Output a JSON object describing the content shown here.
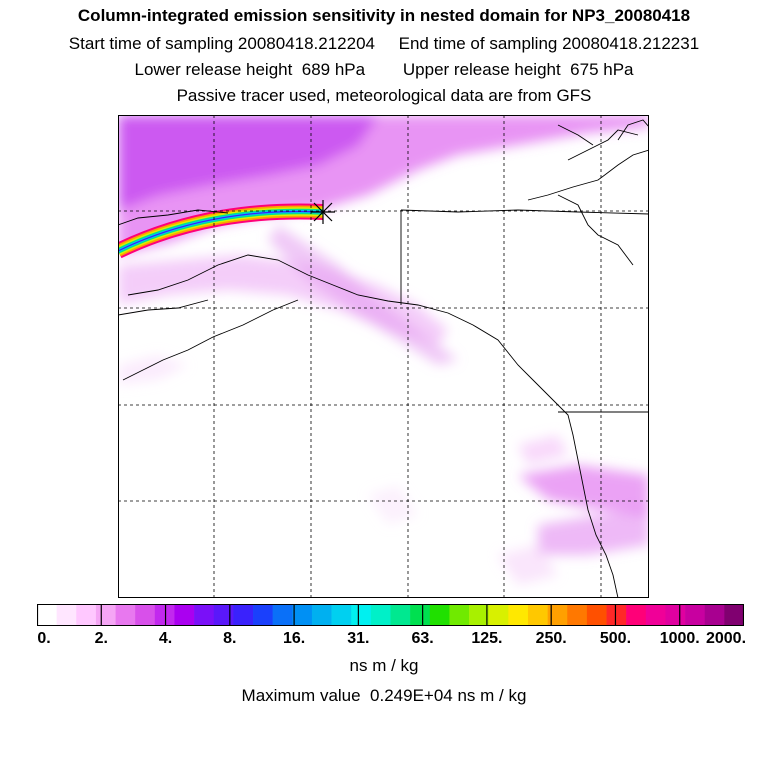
{
  "titles": {
    "main": "Column-integrated emission sensitivity in nested domain for NP3_20080418",
    "sampling": "Start time of sampling 20080418.212204     End time of sampling 20080418.212231",
    "heights": "Lower release height  689 hPa        Upper release height  675 hPa",
    "tracer": "Passive tracer used, meteorological data are from GFS"
  },
  "colorbar": {
    "colors": [
      "#ffffff",
      "#ffe6ff",
      "#ffc8ff",
      "#f5a6f5",
      "#e878ef",
      "#d850ea",
      "#c228ee",
      "#aa00f0",
      "#7a10f8",
      "#5a18fa",
      "#3a22fc",
      "#1a40fc",
      "#0a70f8",
      "#0090f4",
      "#00b0f0",
      "#00d0f0",
      "#00f0f0",
      "#00f0c8",
      "#00e890",
      "#00e050",
      "#20e000",
      "#70ea00",
      "#a8f000",
      "#d8f000",
      "#ffe800",
      "#ffc800",
      "#ffa000",
      "#ff7800",
      "#ff5000",
      "#ff2828",
      "#ff0078",
      "#f00098",
      "#e000a0",
      "#c800a0",
      "#a80090",
      "#800070"
    ],
    "labels": [
      "0.",
      "2.",
      "4.",
      "8.",
      "16.",
      "31.",
      "63.",
      "125.",
      "250.",
      "500.",
      "1000.",
      "2000."
    ],
    "units": "ns m / kg"
  },
  "max_value_text": "Maximum value  0.249E+04 ns m / kg"
}
